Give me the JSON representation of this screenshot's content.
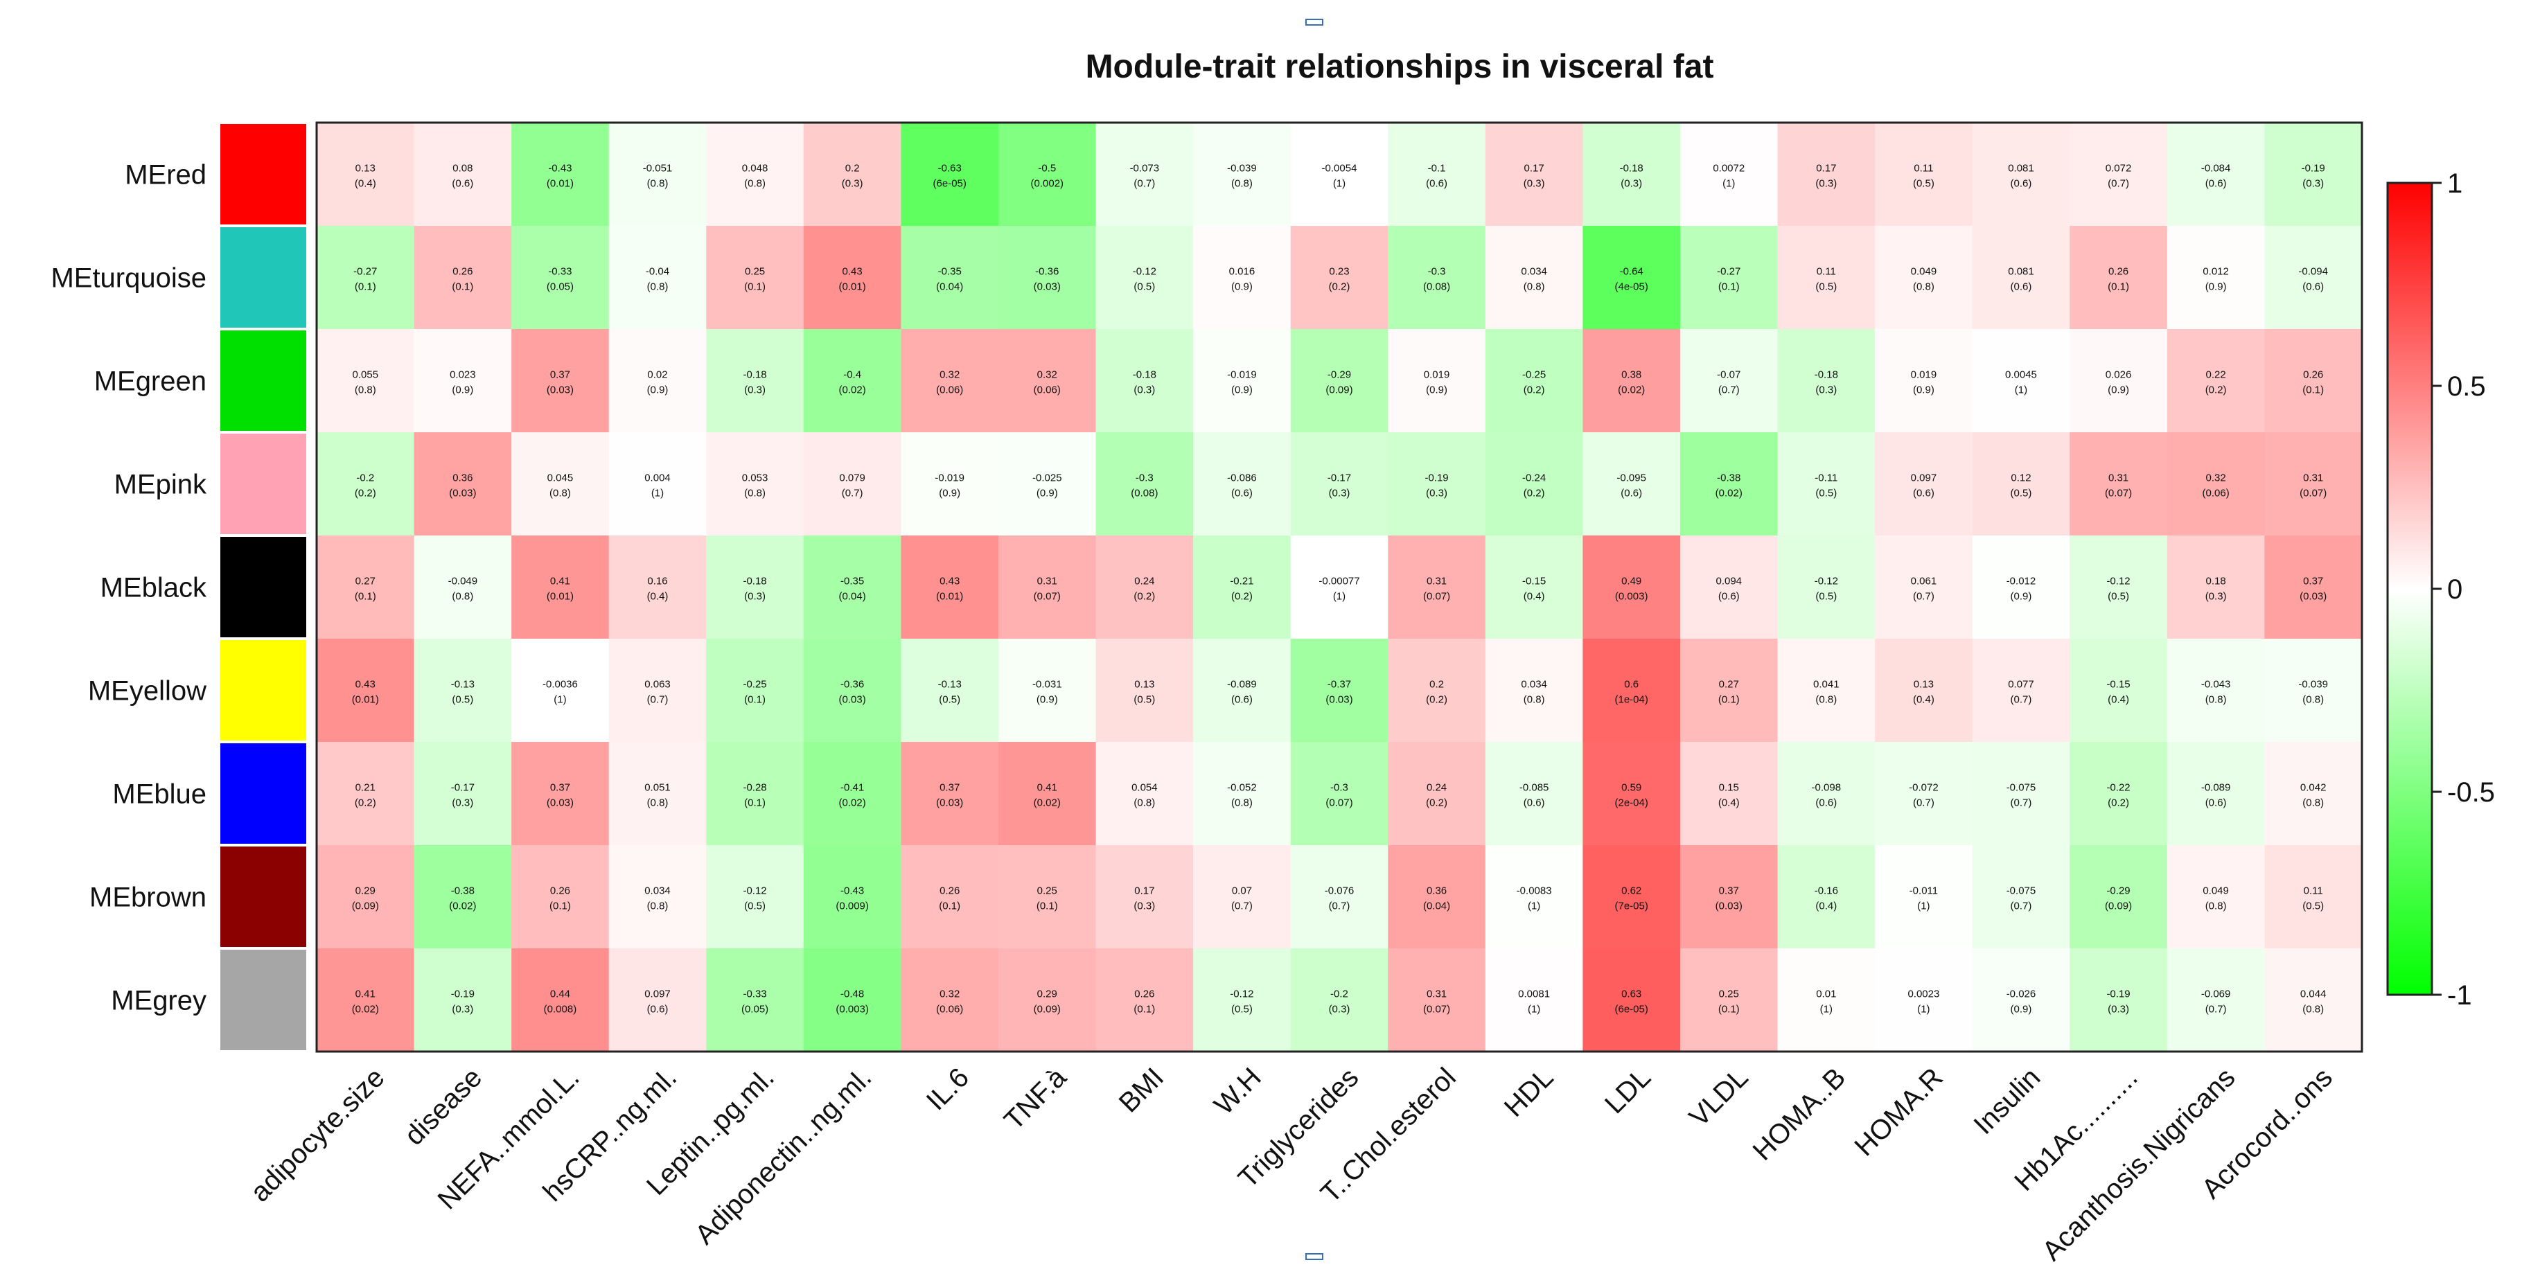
{
  "chart_data": {
    "type": "heatmap",
    "title": "Module-trait relationships in visceral fat",
    "rows": [
      {
        "name": "MEred",
        "color": "#ff0000"
      },
      {
        "name": "MEturquoise",
        "color": "#20c7b8"
      },
      {
        "name": "MEgreen",
        "color": "#00e000"
      },
      {
        "name": "MEpink",
        "color": "#ffa3b4"
      },
      {
        "name": "MEblack",
        "color": "#000000"
      },
      {
        "name": "MEyellow",
        "color": "#ffff00"
      },
      {
        "name": "MEblue",
        "color": "#0000ff"
      },
      {
        "name": "MEbrown",
        "color": "#8b0000"
      },
      {
        "name": "MEgrey",
        "color": "#a6a6a6"
      }
    ],
    "columns": [
      "adipocyte.size",
      "disease",
      "NEFA..mmol.L.",
      "hsCRP..ng.ml.",
      "Leptin..pg.ml.",
      "Adiponectin..ng.ml.",
      "IL.6",
      "TNF.à",
      "BMI",
      "W.H",
      "Triglycerides",
      "T..Chol.esterol",
      "HDL",
      "LDL",
      "VLDL",
      "HOMA..B",
      "HOMA.R",
      "Insulin",
      "Hb1Ac..........",
      "Acanthosis.Nigricans",
      "Acrocord..ons"
    ],
    "values": [
      [
        "0.13",
        "0.08",
        "-0.43",
        "-0.051",
        "0.048",
        "0.2",
        "-0.63",
        "-0.5",
        "-0.073",
        "-0.039",
        "-0.0054",
        "-0.1",
        "0.17",
        "-0.18",
        "0.0072",
        "0.17",
        "0.11",
        "0.081",
        "0.072",
        "-0.084",
        "-0.19"
      ],
      [
        "-0.27",
        "0.26",
        "-0.33",
        "-0.04",
        "0.25",
        "0.43",
        "-0.35",
        "-0.36",
        "-0.12",
        "0.016",
        "0.23",
        "-0.3",
        "0.034",
        "-0.64",
        "-0.27",
        "0.11",
        "0.049",
        "0.081",
        "0.26",
        "0.012",
        "-0.094"
      ],
      [
        "0.055",
        "0.023",
        "0.37",
        "0.02",
        "-0.18",
        "-0.4",
        "0.32",
        "0.32",
        "-0.18",
        "-0.019",
        "-0.29",
        "0.019",
        "-0.25",
        "0.38",
        "-0.07",
        "-0.18",
        "0.019",
        "0.0045",
        "0.026",
        "0.22",
        "0.26"
      ],
      [
        "-0.2",
        "0.36",
        "0.045",
        "0.004",
        "0.053",
        "0.079",
        "-0.019",
        "-0.025",
        "-0.3",
        "-0.086",
        "-0.17",
        "-0.19",
        "-0.24",
        "-0.095",
        "-0.38",
        "-0.11",
        "0.097",
        "0.12",
        "0.31",
        "0.32",
        "0.31"
      ],
      [
        "0.27",
        "-0.049",
        "0.41",
        "0.16",
        "-0.18",
        "-0.35",
        "0.43",
        "0.31",
        "0.24",
        "-0.21",
        "-0.00077",
        "0.31",
        "-0.15",
        "0.49",
        "0.094",
        "-0.12",
        "0.061",
        "-0.012",
        "-0.12",
        "0.18",
        "0.37"
      ],
      [
        "0.43",
        "-0.13",
        "-0.0036",
        "0.063",
        "-0.25",
        "-0.36",
        "-0.13",
        "-0.031",
        "0.13",
        "-0.089",
        "-0.37",
        "0.2",
        "0.034",
        "0.6",
        "0.27",
        "0.041",
        "0.13",
        "0.077",
        "-0.15",
        "-0.043",
        "-0.039"
      ],
      [
        "0.21",
        "-0.17",
        "0.37",
        "0.051",
        "-0.28",
        "-0.41",
        "0.37",
        "0.41",
        "0.054",
        "-0.052",
        "-0.3",
        "0.24",
        "-0.085",
        "0.59",
        "0.15",
        "-0.098",
        "-0.072",
        "-0.075",
        "-0.22",
        "-0.089",
        "0.042"
      ],
      [
        "0.29",
        "-0.38",
        "0.26",
        "0.034",
        "-0.12",
        "-0.43",
        "0.26",
        "0.25",
        "0.17",
        "0.07",
        "-0.076",
        "0.36",
        "-0.0083",
        "0.62",
        "0.37",
        "-0.16",
        "-0.011",
        "-0.075",
        "-0.29",
        "0.049",
        "0.11"
      ],
      [
        "0.41",
        "-0.19",
        "0.44",
        "0.097",
        "-0.33",
        "-0.48",
        "0.32",
        "0.29",
        "0.26",
        "-0.12",
        "-0.2",
        "0.31",
        "0.0081",
        "0.63",
        "0.25",
        "0.01",
        "0.0023",
        "-0.026",
        "-0.19",
        "-0.069",
        "0.044"
      ]
    ],
    "pvalues": [
      [
        "(0.4)",
        "(0.6)",
        "(0.01)",
        "(0.8)",
        "(0.8)",
        "(0.3)",
        "(6e-05)",
        "(0.002)",
        "(0.7)",
        "(0.8)",
        "(1)",
        "(0.6)",
        "(0.3)",
        "(0.3)",
        "(1)",
        "(0.3)",
        "(0.5)",
        "(0.6)",
        "(0.7)",
        "(0.6)",
        "(0.3)"
      ],
      [
        "(0.1)",
        "(0.1)",
        "(0.05)",
        "(0.8)",
        "(0.1)",
        "(0.01)",
        "(0.04)",
        "(0.03)",
        "(0.5)",
        "(0.9)",
        "(0.2)",
        "(0.08)",
        "(0.8)",
        "(4e-05)",
        "(0.1)",
        "(0.5)",
        "(0.8)",
        "(0.6)",
        "(0.1)",
        "(0.9)",
        "(0.6)"
      ],
      [
        "(0.8)",
        "(0.9)",
        "(0.03)",
        "(0.9)",
        "(0.3)",
        "(0.02)",
        "(0.06)",
        "(0.06)",
        "(0.3)",
        "(0.9)",
        "(0.09)",
        "(0.9)",
        "(0.2)",
        "(0.02)",
        "(0.7)",
        "(0.3)",
        "(0.9)",
        "(1)",
        "(0.9)",
        "(0.2)",
        "(0.1)"
      ],
      [
        "(0.2)",
        "(0.03)",
        "(0.8)",
        "(1)",
        "(0.8)",
        "(0.7)",
        "(0.9)",
        "(0.9)",
        "(0.08)",
        "(0.6)",
        "(0.3)",
        "(0.3)",
        "(0.2)",
        "(0.6)",
        "(0.02)",
        "(0.5)",
        "(0.6)",
        "(0.5)",
        "(0.07)",
        "(0.06)",
        "(0.07)"
      ],
      [
        "(0.1)",
        "(0.8)",
        "(0.01)",
        "(0.4)",
        "(0.3)",
        "(0.04)",
        "(0.01)",
        "(0.07)",
        "(0.2)",
        "(0.2)",
        "(1)",
        "(0.07)",
        "(0.4)",
        "(0.003)",
        "(0.6)",
        "(0.5)",
        "(0.7)",
        "(0.9)",
        "(0.5)",
        "(0.3)",
        "(0.03)"
      ],
      [
        "(0.01)",
        "(0.5)",
        "(1)",
        "(0.7)",
        "(0.1)",
        "(0.03)",
        "(0.5)",
        "(0.9)",
        "(0.5)",
        "(0.6)",
        "(0.03)",
        "(0.2)",
        "(0.8)",
        "(1e-04)",
        "(0.1)",
        "(0.8)",
        "(0.4)",
        "(0.7)",
        "(0.4)",
        "(0.8)",
        "(0.8)"
      ],
      [
        "(0.2)",
        "(0.3)",
        "(0.03)",
        "(0.8)",
        "(0.1)",
        "(0.02)",
        "(0.03)",
        "(0.02)",
        "(0.8)",
        "(0.8)",
        "(0.07)",
        "(0.2)",
        "(0.6)",
        "(2e-04)",
        "(0.4)",
        "(0.6)",
        "(0.7)",
        "(0.7)",
        "(0.2)",
        "(0.6)",
        "(0.8)"
      ],
      [
        "(0.09)",
        "(0.02)",
        "(0.1)",
        "(0.8)",
        "(0.5)",
        "(0.009)",
        "(0.1)",
        "(0.1)",
        "(0.3)",
        "(0.7)",
        "(0.7)",
        "(0.04)",
        "(1)",
        "(7e-05)",
        "(0.03)",
        "(0.4)",
        "(1)",
        "(0.7)",
        "(0.09)",
        "(0.8)",
        "(0.5)"
      ],
      [
        "(0.02)",
        "(0.3)",
        "(0.008)",
        "(0.6)",
        "(0.05)",
        "(0.003)",
        "(0.06)",
        "(0.09)",
        "(0.1)",
        "(0.5)",
        "(0.3)",
        "(0.07)",
        "(1)",
        "(6e-05)",
        "(0.1)",
        "(1)",
        "(1)",
        "(0.9)",
        "(0.3)",
        "(0.7)",
        "(0.8)"
      ]
    ],
    "color_scale": {
      "min": -1,
      "max": 1,
      "low_color": "#00ff00",
      "mid_color": "#ffffff",
      "high_color": "#ff0000",
      "ticks": [
        "1",
        "0.5",
        "0",
        "-0.5",
        "-1"
      ]
    }
  }
}
